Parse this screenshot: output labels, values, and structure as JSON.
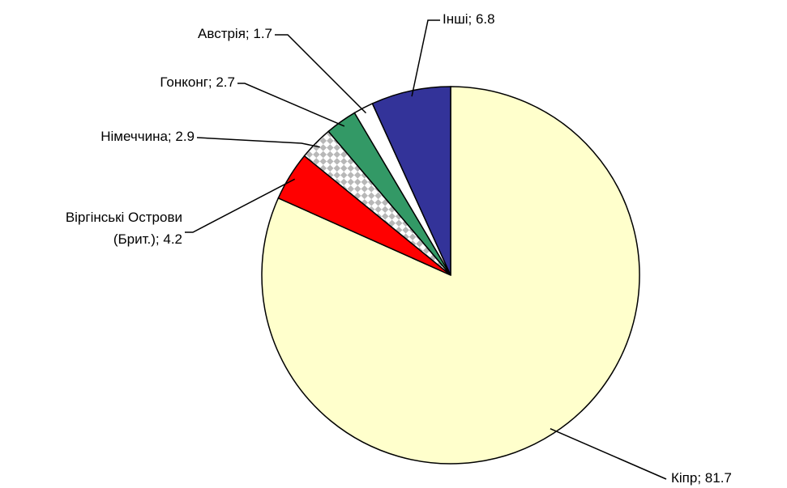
{
  "chart_data": {
    "type": "pie",
    "values": [
      81.7,
      4.2,
      2.9,
      2.7,
      1.7,
      6.8
    ],
    "value_labels": [
      "Кіпр; 81.7",
      "Віргінські Острови\n(Брит.); 4.2",
      "Німеччина; 2.9",
      "Гонконг; 2.7",
      "Австрія; 1.7",
      "Інші; 6.8"
    ],
    "colors": [
      "#ffffcc",
      "#ff0000",
      "pattern",
      "#339966",
      "#ffffff",
      "#333399"
    ]
  }
}
